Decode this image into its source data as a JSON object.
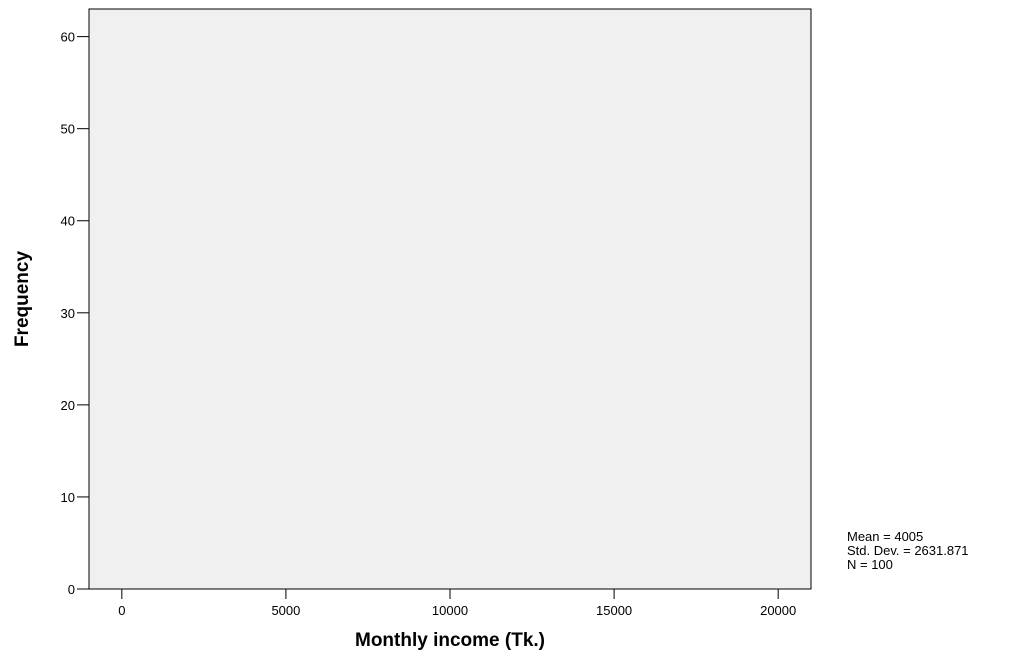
{
  "chart_data": {
    "type": "bar",
    "title": "",
    "xlabel": "Monthly income (Tk.)",
    "ylabel": "Frequency",
    "xlim": [
      -1000,
      21000
    ],
    "ylim": [
      0,
      63
    ],
    "x_ticks": [
      0,
      5000,
      10000,
      15000,
      20000
    ],
    "y_ticks": [
      0,
      10,
      20,
      30,
      40,
      50,
      60
    ],
    "grid": false,
    "plot_background": "#f0f0f0",
    "bars": [],
    "stats": {
      "mean": "Mean = 4005",
      "std_dev": "Std. Dev. = 2631.871",
      "n": "N = 100"
    }
  }
}
